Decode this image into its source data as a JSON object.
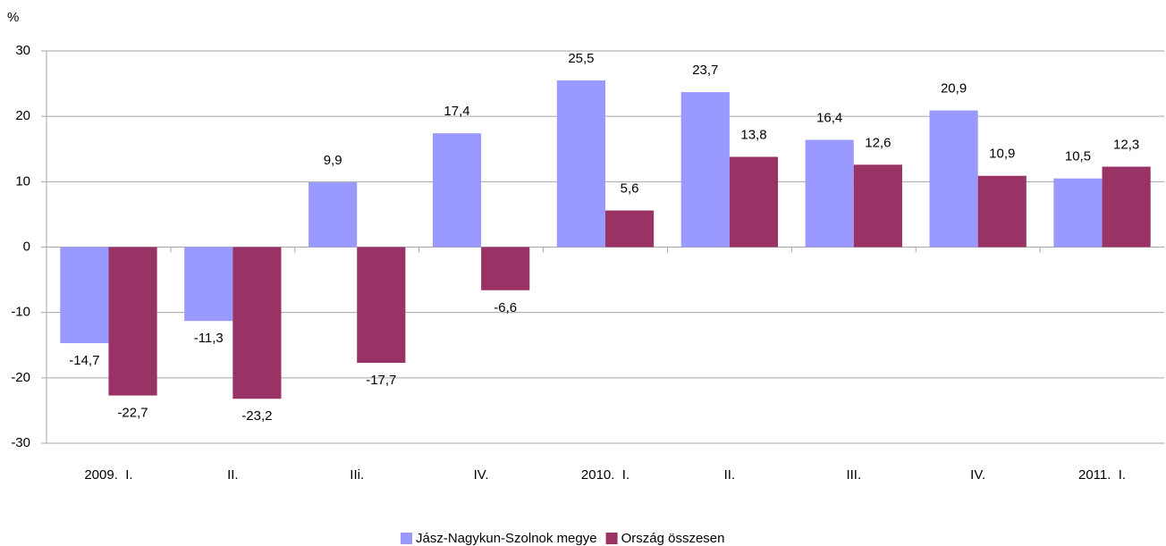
{
  "chart_data": {
    "type": "bar",
    "y_unit": "%",
    "categories": [
      "2009.  I.",
      "II.",
      "IIi.",
      "IV.",
      "2010.  I.",
      "II.",
      "III.",
      "IV.",
      "2011.  I."
    ],
    "series": [
      {
        "name": "Jász-Nagykun-Szolnok megye",
        "color": "#9999ff",
        "values": [
          -14.7,
          -11.3,
          9.9,
          17.4,
          25.5,
          23.7,
          16.4,
          20.9,
          10.5
        ],
        "value_labels": [
          "-14,7",
          "-11,3",
          "9,9",
          "17,4",
          "25,5",
          "23,7",
          "16,4",
          "20,9",
          "10,5"
        ]
      },
      {
        "name": "Ország összesen",
        "color": "#993366",
        "values": [
          -22.7,
          -23.2,
          -17.7,
          -6.6,
          5.6,
          13.8,
          12.6,
          10.9,
          12.3
        ],
        "value_labels": [
          "-22,7",
          "-23,2",
          "-17,7",
          "-6,6",
          "5,6",
          "13,8",
          "12,6",
          "10,9",
          "12,3"
        ]
      }
    ],
    "ylim": [
      -30,
      30
    ],
    "yticks": [
      -30,
      -20,
      -10,
      0,
      10,
      20,
      30
    ],
    "grid": true,
    "legend": "bottom"
  }
}
